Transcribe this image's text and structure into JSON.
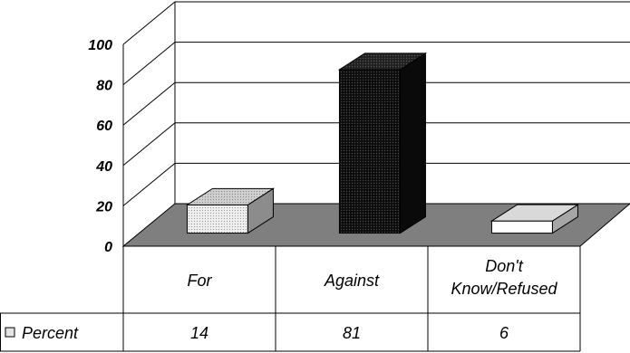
{
  "chart_data": {
    "type": "bar",
    "categories": [
      "For",
      "Against",
      "Don't Know/Refused"
    ],
    "category_lines": [
      [
        "For"
      ],
      [
        "Against"
      ],
      [
        "Don't",
        "Know/Refused"
      ]
    ],
    "series": [
      {
        "name": "Percent",
        "values": [
          14,
          81,
          6
        ]
      }
    ],
    "value_labels": [
      "14",
      "81",
      "6"
    ],
    "y_ticks": [
      "0",
      "20",
      "40",
      "60",
      "80",
      "100"
    ],
    "ylim": [
      0,
      100
    ],
    "style": "3d",
    "grid": true,
    "legend": "data-table-left",
    "colors": {
      "floor": "#7f7f7f",
      "bar_fills": [
        "#e3e3e3",
        "#161616",
        "#ffffff"
      ],
      "bar_tops": [
        "#c8c8c8",
        "#262626",
        "#d9d9d9"
      ],
      "bar_sides": [
        "#8c8c8c",
        "#0a0a0a",
        "#a6a6a6"
      ],
      "legend_swatch": "#e3e3e3"
    }
  }
}
